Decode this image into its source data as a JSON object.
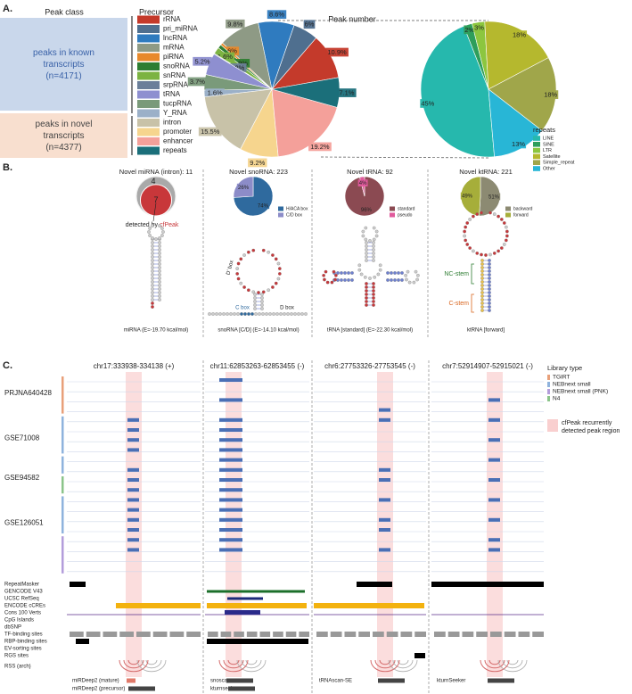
{
  "panel_labels": [
    "A.",
    "B.",
    "C."
  ],
  "panel_a": {
    "peak_class_header": "Peak class",
    "classes": [
      {
        "name": "peaks in known transcripts",
        "count": "(n=4171)"
      },
      {
        "name": "peaks in novel transcripts",
        "count": "(n=4377)"
      }
    ]
  },
  "chart_data": [
    {
      "type": "pie",
      "title": "Peak number",
      "legend_title": "Precursor",
      "categories": [
        "rRNA",
        "pri_miRNA",
        "lncRNA",
        "mRNA",
        "piRNA",
        "snoRNA",
        "snRNA",
        "srpRNA",
        "tRNA",
        "tucpRNA",
        "Y_RNA",
        "intron",
        "promoter",
        "enhancer",
        "repeats"
      ],
      "colors": [
        "#c43a2b",
        "#4f6f8f",
        "#2f7bbf",
        "#8e9a85",
        "#e8892b",
        "#2e7d32",
        "#7cb342",
        "#6b7f99",
        "#8e8fd0",
        "#7a9a7a",
        "#9bb0c8",
        "#c8c2a8",
        "#f6d58e",
        "#f4a09a",
        "#1b6f7a"
      ],
      "values": [
        10.9,
        6,
        8.6,
        9.8,
        0.6,
        0.9,
        1.6,
        0.2,
        5.2,
        3.7,
        1.6,
        15.5,
        9.2,
        19.2,
        7.1
      ],
      "value_labels": [
        "10.9%",
        "6%",
        "8.6%",
        "9.8%",
        "0.6%",
        "0.9%",
        "1.6%",
        "0.2%",
        "5.2%",
        "3.7%",
        "1.6%",
        "15.5%",
        "9.2%",
        "19.2%",
        "7.1%"
      ]
    },
    {
      "type": "pie",
      "legend_title": "repeats",
      "categories": [
        "LINE",
        "SINE",
        "LTR",
        "Satellite",
        "Simple_repeat",
        "Other"
      ],
      "colors": [
        "#26b8ad",
        "#2e9e5b",
        "#8cc63f",
        "#b5b82e",
        "#a0a64a",
        "#28b6d6"
      ],
      "values": [
        45,
        2,
        3,
        18,
        18,
        13
      ],
      "value_labels": [
        "45%",
        "2%",
        "3%",
        "18%",
        "18%",
        "13%"
      ]
    },
    {
      "type": "venn",
      "title": "Novel miRNA (intron): 11",
      "values": [
        4,
        7
      ],
      "colors": [
        "#a9a9a9",
        "#c8373a"
      ],
      "note": "detected by",
      "note_highlight": "cfPeak"
    },
    {
      "type": "pie",
      "title": "Novel snoRNA: 223",
      "categories": [
        "H/ACA box",
        "C/D box"
      ],
      "colors": [
        "#2f6a9e",
        "#8c8cc8"
      ],
      "values": [
        74,
        26
      ],
      "value_labels": [
        "74%",
        "26%"
      ]
    },
    {
      "type": "pie",
      "title": "Novel tRNA: 92",
      "categories": [
        "standard",
        "pseudo"
      ],
      "colors": [
        "#8b4a52",
        "#e05a9c"
      ],
      "values": [
        96,
        4
      ],
      "value_labels": [
        "96%",
        "4%"
      ]
    },
    {
      "type": "pie",
      "title": "Novel ktRNA: 221",
      "categories": [
        "backward",
        "forward"
      ],
      "colors": [
        "#8c8a72",
        "#a6ae3a"
      ],
      "values": [
        51,
        49
      ],
      "value_labels": [
        "51%",
        "49%"
      ]
    }
  ],
  "panel_b": {
    "captions": [
      "miRNA (E=-19.70 kcal/mol)",
      "snoRNA [C/D] (E=-14.10 kcal/mol)",
      "tRNA [standard] (E=-22.30 kcal/mol)",
      "ktRNA [forward]"
    ],
    "snorna_labels": [
      "C box",
      "D box",
      "D' box"
    ],
    "ktrna_labels": [
      "NC-stem",
      "C-stem"
    ]
  },
  "panel_c": {
    "regions": [
      "chr17:333938-334138 (+)",
      "chr11:62853263-62853455 (-)",
      "chr6:27753326-27753545 (-)",
      "chr7:52914907-52915021 (-)"
    ],
    "samples": [
      "PRJNA640428",
      "GSE71008",
      "GSE94582",
      "GSE126051"
    ],
    "tracks": [
      "RepeatMasker",
      "GENCODE V43",
      "UCSC RefSeq",
      "ENCODE cCREs",
      "Cons 100 Verts",
      "CpG Islands",
      "dbSNP",
      "TF-binding sites",
      "RBP-binding sites",
      "EV-sorting sites",
      "RGS sites",
      "RSS (arch)"
    ],
    "tools": [
      [
        "miRDeep2 (mature)",
        "miRDeep2 (precursor)"
      ],
      [
        "snoscan",
        "kturnseeker"
      ],
      [
        "tRNAscan-SE"
      ],
      [
        "kturnSeeker"
      ]
    ],
    "legend_title": "Library type",
    "library_types": [
      {
        "name": "TGIRT",
        "color": "#e8a07a"
      },
      {
        "name": "NEBnext small",
        "color": "#8fb3dd"
      },
      {
        "name": "NEBnext small (PNK)",
        "color": "#b39ddb"
      },
      {
        "name": "N4",
        "color": "#8bc48a"
      }
    ],
    "highlight_label": "cfPeak recurrently detected peak region"
  }
}
